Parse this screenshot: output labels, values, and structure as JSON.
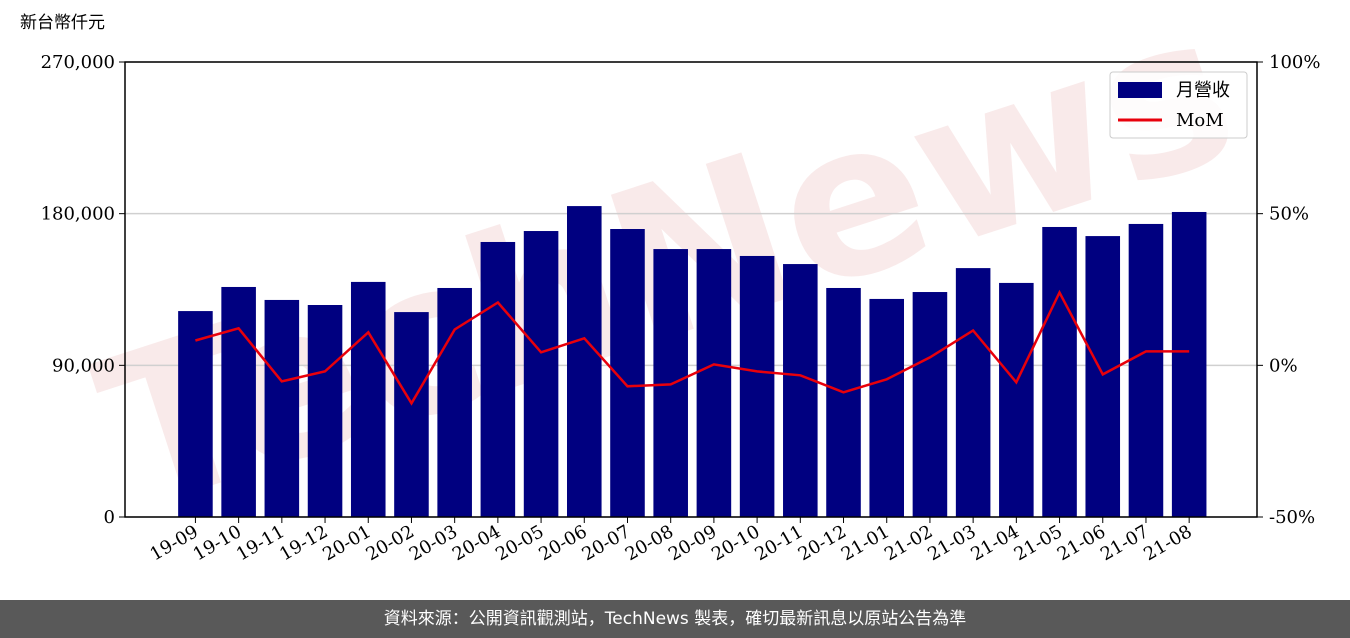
{
  "chart_data": {
    "type": "bar-line",
    "ylabel": "新台幣仟元",
    "watermark": "TechNews",
    "categories": [
      "19-09",
      "19-10",
      "19-11",
      "19-12",
      "20-01",
      "20-02",
      "20-03",
      "20-04",
      "20-05",
      "20-06",
      "20-07",
      "20-08",
      "20-09",
      "20-10",
      "20-11",
      "20-12",
      "21-01",
      "21-02",
      "21-03",
      "21-04",
      "21-05",
      "21-06",
      "21-07",
      "21-08"
    ],
    "series": [
      {
        "name": "月營收",
        "type": "bar",
        "color": "#000080",
        "values": [
          122200,
          136500,
          128800,
          125800,
          139500,
          121600,
          135900,
          163200,
          169700,
          184500,
          170900,
          159000,
          159000,
          154900,
          150100,
          135900,
          129400,
          133500,
          147700,
          138900,
          172100,
          166700,
          173900,
          181000
        ]
      },
      {
        "name": "MoM",
        "type": "line",
        "axis": "y2",
        "color": "#e8000b",
        "values": [
          8.2,
          12.2,
          -5.3,
          -2.0,
          10.9,
          -12.5,
          11.8,
          20.7,
          4.3,
          8.9,
          -6.9,
          -6.3,
          0.3,
          -2.0,
          -3.3,
          -8.9,
          -4.6,
          2.6,
          11.5,
          -5.6,
          24.0,
          -3.0,
          4.6,
          4.6
        ]
      }
    ],
    "ylim": [
      0,
      270000
    ],
    "yticks": [
      0,
      {
        "value": 90000,
        "label": "90,000"
      },
      {
        "value": 180000,
        "label": "180,000"
      },
      {
        "value": 270000,
        "label": "270,000"
      }
    ],
    "y2lim": [
      -50,
      100
    ],
    "y2ticks": [
      {
        "value": -50,
        "label": "-50%"
      },
      {
        "value": 0,
        "label": "0%"
      },
      {
        "value": 50,
        "label": "50%"
      },
      {
        "value": 100,
        "label": "100%"
      }
    ],
    "grid": true,
    "legend": "upper right"
  },
  "footer": "資料來源：公開資訊觀測站，TechNews 製表，確切最新訊息以原站公告為準"
}
